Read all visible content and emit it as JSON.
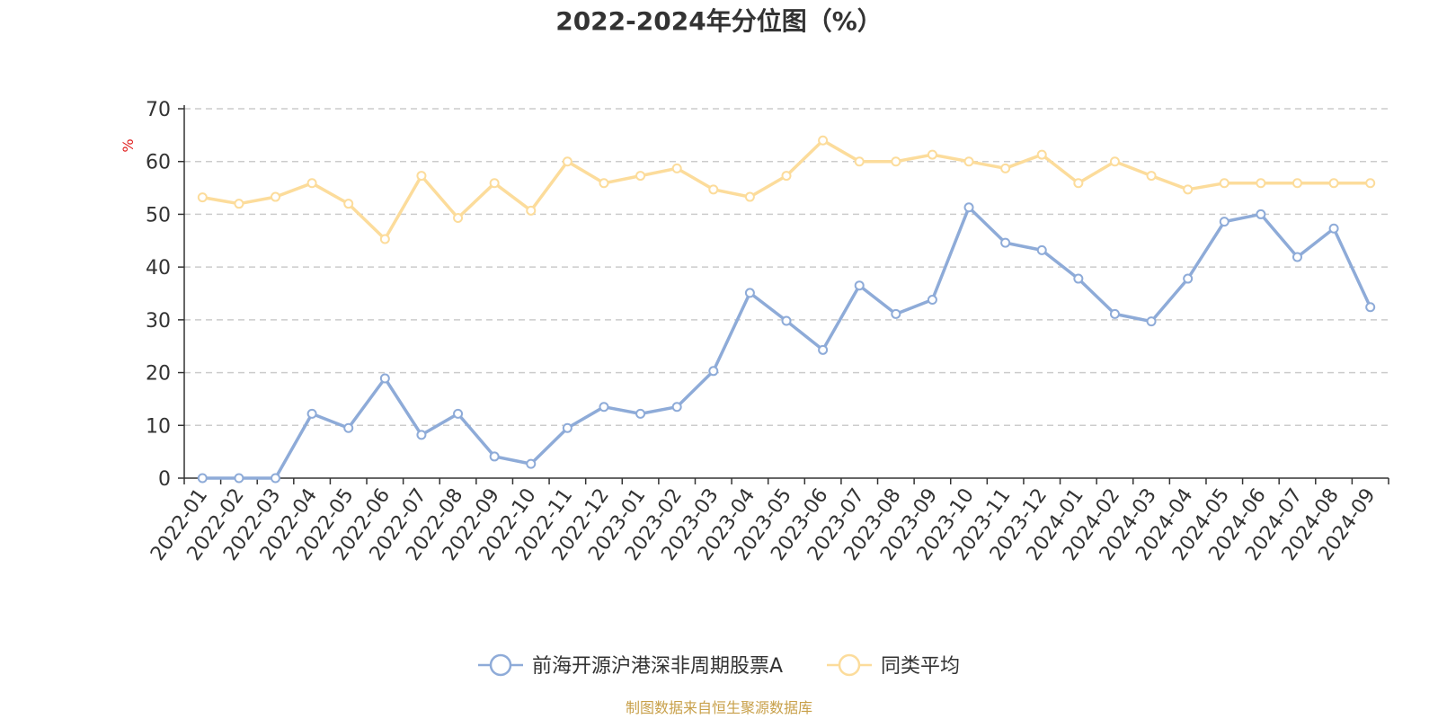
{
  "chart_data": {
    "type": "line",
    "title": "2022-2024年分位图（%）",
    "xlabel": "",
    "ylabel": "%",
    "ylim": [
      0,
      70
    ],
    "yticks": [
      0,
      10,
      20,
      30,
      40,
      50,
      60,
      70
    ],
    "grid": true,
    "legend_position": "bottom-center",
    "categories": [
      "2022-01",
      "2022-02",
      "2022-03",
      "2022-04",
      "2022-05",
      "2022-06",
      "2022-07",
      "2022-08",
      "2022-09",
      "2022-10",
      "2022-11",
      "2022-12",
      "2023-01",
      "2023-02",
      "2023-03",
      "2023-04",
      "2023-05",
      "2023-06",
      "2023-07",
      "2023-08",
      "2023-09",
      "2023-10",
      "2023-11",
      "2023-12",
      "2024-01",
      "2024-02",
      "2024-03",
      "2024-04",
      "2024-05",
      "2024-06",
      "2024-07",
      "2024-08",
      "2024-09"
    ],
    "series": [
      {
        "name": "前海开源沪港深非周期股票A",
        "color": "#8eabd8",
        "values": [
          0,
          0,
          0,
          12.2,
          9.5,
          18.9,
          8.2,
          12.2,
          4.1,
          2.7,
          9.5,
          13.5,
          12.2,
          13.5,
          20.3,
          35.1,
          29.8,
          24.3,
          36.5,
          31.1,
          33.8,
          51.3,
          44.6,
          43.2,
          37.8,
          31.1,
          29.7,
          37.8,
          48.6,
          50.0,
          41.9,
          47.3,
          32.4
        ]
      },
      {
        "name": "同类平均",
        "color": "#fcdc9b",
        "values": [
          53.2,
          52.0,
          53.3,
          55.9,
          52.0,
          45.3,
          57.3,
          49.3,
          55.9,
          50.7,
          60.0,
          55.9,
          57.3,
          58.7,
          54.7,
          53.3,
          57.3,
          64.0,
          60.0,
          60.0,
          61.3,
          60.0,
          58.7,
          61.3,
          55.9,
          60.0,
          57.3,
          54.7,
          55.9,
          55.9,
          55.9,
          55.9,
          55.9
        ]
      }
    ]
  },
  "source_text": "制图数据来自恒生聚源数据库",
  "source_color": "#c8a04a",
  "axis_label_color": "#e02020"
}
